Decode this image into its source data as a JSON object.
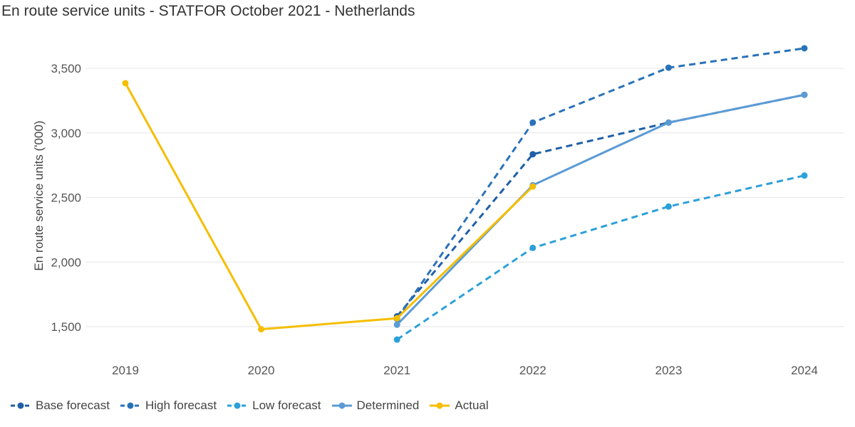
{
  "chart_data": {
    "type": "line",
    "title": "En route service units - STATFOR October 2021 - Netherlands",
    "xlabel": "",
    "ylabel": "En route service units ('000)",
    "categories": [
      "2019",
      "2020",
      "2021",
      "2022",
      "2023",
      "2024"
    ],
    "ylim": [
      1200,
      3750
    ],
    "yticks": [
      1500,
      2000,
      2500,
      3000,
      3500
    ],
    "ytick_labels": [
      "1,500",
      "2,000",
      "2,500",
      "3,000",
      "3,500"
    ],
    "grid": true,
    "legend_position": "bottom-left",
    "series": [
      {
        "name": "Base forecast",
        "color": "#1f5fa6",
        "dash": true,
        "values": [
          null,
          null,
          1580,
          2835,
          3080,
          3295
        ]
      },
      {
        "name": "High forecast",
        "color": "#2a72b8",
        "dash": true,
        "values": [
          null,
          null,
          1560,
          3080,
          3505,
          3655
        ]
      },
      {
        "name": "Low forecast",
        "color": "#2ca0d8",
        "dash": true,
        "values": [
          null,
          null,
          1400,
          2110,
          2430,
          2670
        ]
      },
      {
        "name": "Determined",
        "color": "#5b9bd5",
        "dash": false,
        "values": [
          null,
          null,
          1515,
          2595,
          3080,
          3295
        ]
      },
      {
        "name": "Actual",
        "color": "#f5be00",
        "dash": false,
        "values": [
          3385,
          1480,
          1565,
          2585,
          null,
          null
        ]
      }
    ]
  }
}
